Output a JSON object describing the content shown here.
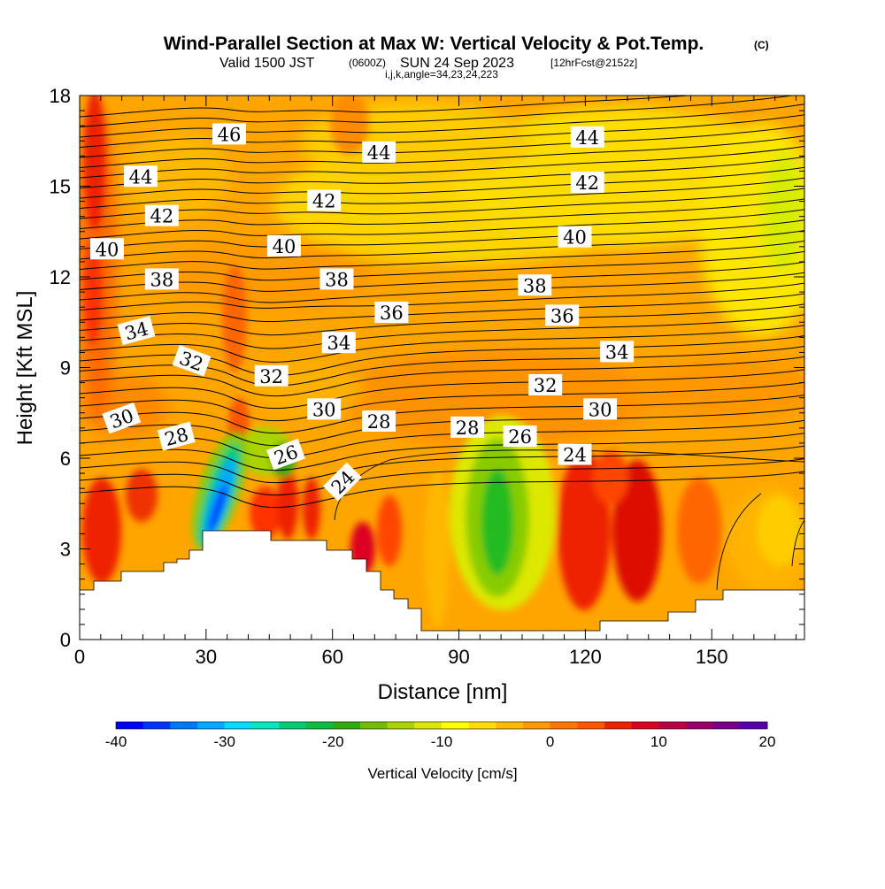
{
  "header": {
    "title": "Wind-Parallel Section at Max W: Vertical Velocity & Pot.Temp.",
    "copyright": "(C)",
    "valid_prefix": "Valid 1500 JST",
    "valid_utc": "(0600Z)",
    "valid_date": "SUN 24 Sep 2023",
    "forecast_info": "[12hrFcst@2152z]",
    "indices": "i,j,k,angle=34,23,24,223"
  },
  "chart_data": {
    "type": "heatmap",
    "title": "Wind-Parallel Section at Max W: Vertical Velocity & Pot.Temp.",
    "xlabel": "Distance [nm]",
    "ylabel": "Height [Kft MSL]",
    "xlim": [
      0,
      172
    ],
    "ylim": [
      0,
      18
    ],
    "xticks": [
      "0",
      "30",
      "60",
      "90",
      "120",
      "150"
    ],
    "yticks": [
      "0",
      "3",
      "6",
      "9",
      "12",
      "15",
      "18"
    ],
    "colorbar": {
      "label": "Vertical Velocity [cm/s]",
      "range": [
        -40,
        20
      ],
      "ticks": [
        "-40",
        "-30",
        "-20",
        "-10",
        "0",
        "10",
        "20"
      ],
      "colors": [
        "#0000ff",
        "#0033ff",
        "#0077ff",
        "#00aaff",
        "#00ddff",
        "#00e8bb",
        "#00cc77",
        "#11bb44",
        "#33aa11",
        "#77bb00",
        "#aad400",
        "#dde800",
        "#ffff00",
        "#ffdd00",
        "#ffbb00",
        "#ff9900",
        "#ff7700",
        "#ff5500",
        "#ee2200",
        "#dd0022",
        "#bb0044",
        "#990066",
        "#770088",
        "#5500aa"
      ]
    },
    "theta_labels": [
      {
        "text": "46",
        "x": 35.5,
        "y": 16.7,
        "rot": 0
      },
      {
        "text": "44",
        "x": 14.5,
        "y": 15.3,
        "rot": 0
      },
      {
        "text": "44",
        "x": 71,
        "y": 16.1,
        "rot": 0
      },
      {
        "text": "44",
        "x": 120.5,
        "y": 16.6,
        "rot": 0
      },
      {
        "text": "42",
        "x": 19.5,
        "y": 14.0,
        "rot": 0
      },
      {
        "text": "42",
        "x": 58,
        "y": 14.5,
        "rot": 0
      },
      {
        "text": "42",
        "x": 120.5,
        "y": 15.1,
        "rot": 0
      },
      {
        "text": "40",
        "x": 6.5,
        "y": 12.9,
        "rot": 0
      },
      {
        "text": "40",
        "x": 48.5,
        "y": 13.0,
        "rot": 0
      },
      {
        "text": "40",
        "x": 117.5,
        "y": 13.3,
        "rot": 0
      },
      {
        "text": "38",
        "x": 19.5,
        "y": 11.9,
        "rot": 0
      },
      {
        "text": "38",
        "x": 61,
        "y": 11.9,
        "rot": 0
      },
      {
        "text": "38",
        "x": 108,
        "y": 11.7,
        "rot": 0
      },
      {
        "text": "36",
        "x": 74,
        "y": 10.8,
        "rot": 0
      },
      {
        "text": "36",
        "x": 114.5,
        "y": 10.7,
        "rot": 0
      },
      {
        "text": "34",
        "x": 13.5,
        "y": 10.2,
        "rot": -15
      },
      {
        "text": "34",
        "x": 61.5,
        "y": 9.8,
        "rot": 0
      },
      {
        "text": "34",
        "x": 127.5,
        "y": 9.5,
        "rot": 0
      },
      {
        "text": "32",
        "x": 26.5,
        "y": 9.2,
        "rot": 20
      },
      {
        "text": "32",
        "x": 45.5,
        "y": 8.7,
        "rot": 0
      },
      {
        "text": "32",
        "x": 110.5,
        "y": 8.4,
        "rot": 0
      },
      {
        "text": "30",
        "x": 10,
        "y": 7.3,
        "rot": -20
      },
      {
        "text": "30",
        "x": 58,
        "y": 7.6,
        "rot": 0
      },
      {
        "text": "30",
        "x": 123.5,
        "y": 7.6,
        "rot": 0
      },
      {
        "text": "28",
        "x": 23,
        "y": 6.7,
        "rot": -15
      },
      {
        "text": "28",
        "x": 71,
        "y": 7.2,
        "rot": 0
      },
      {
        "text": "28",
        "x": 92,
        "y": 7.0,
        "rot": 0
      },
      {
        "text": "26",
        "x": 49,
        "y": 6.1,
        "rot": -20
      },
      {
        "text": "26",
        "x": 104.5,
        "y": 6.7,
        "rot": 0
      },
      {
        "text": "24",
        "x": 62.5,
        "y": 5.2,
        "rot": -45
      },
      {
        "text": "24",
        "x": 117.5,
        "y": 6.1,
        "rot": 0
      }
    ]
  }
}
